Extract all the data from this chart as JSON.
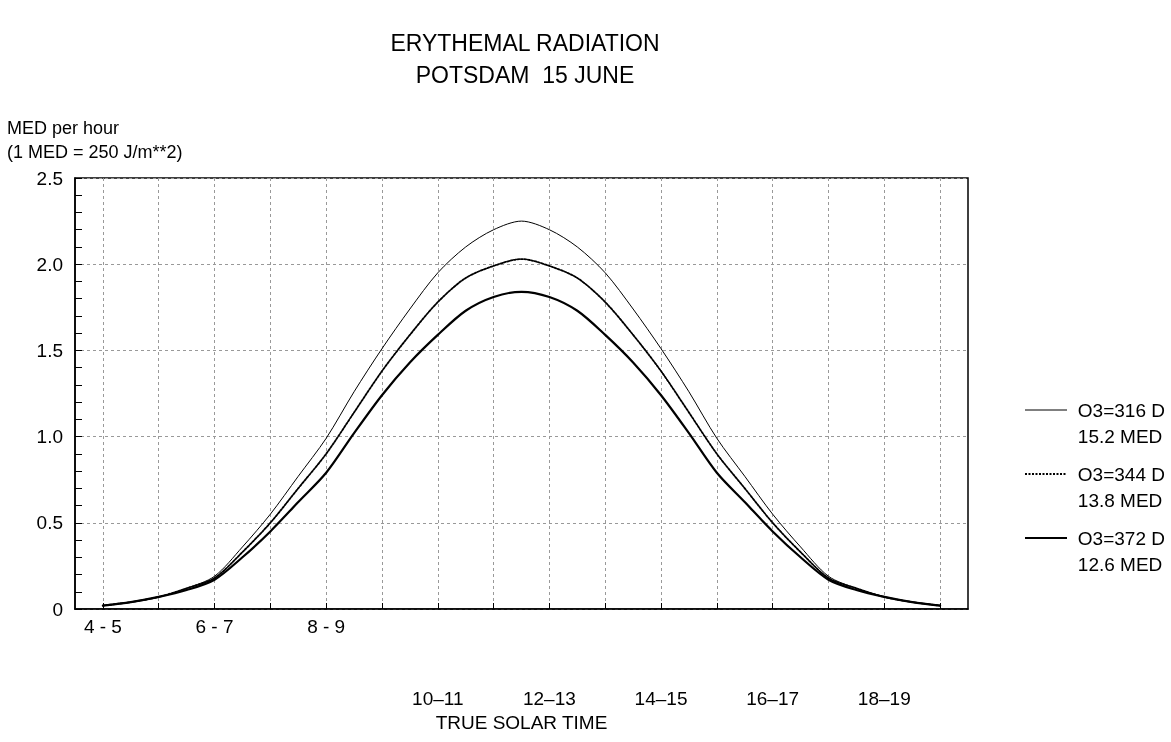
{
  "chart_data": {
    "type": "line",
    "title": "ERYTHEMAL RADIATION\nPOTSDAM  15 JUNE",
    "ylabel": "MED per hour\n(1 MED = 250 J/m**2)",
    "xlabel": "TRUE SOLAR TIME",
    "categories": [
      null,
      "4 - 5",
      null,
      null,
      null,
      "6 - 7",
      null,
      null,
      null,
      "8 - 9",
      null,
      null,
      null,
      "10–11",
      null,
      null,
      null,
      "12–13",
      null,
      null,
      null,
      "14–15",
      null,
      null,
      null,
      "16–17",
      null,
      null,
      null,
      "18–19",
      null,
      null,
      null
    ],
    "series": [
      {
        "name": "O3=316 D\n15.2 MED",
        "color": "#000000",
        "line_style": "solid",
        "values": [
          null,
          0.02,
          0.04,
          0.07,
          0.12,
          0.19,
          0.36,
          0.55,
          0.77,
          0.99,
          1.26,
          1.51,
          1.74,
          1.95,
          2.1,
          2.2,
          2.25,
          2.2,
          2.1,
          1.95,
          1.74,
          1.51,
          1.26,
          0.99,
          0.77,
          0.55,
          0.36,
          0.19,
          0.12,
          0.07,
          0.04,
          0.02,
          null
        ]
      },
      {
        "name": "O3=344 D\n13.8 MED",
        "color": "#000000",
        "line_style": "dotted",
        "values": [
          null,
          0.02,
          0.04,
          0.07,
          0.12,
          0.18,
          0.33,
          0.5,
          0.7,
          0.9,
          1.14,
          1.38,
          1.59,
          1.78,
          1.92,
          1.99,
          2.03,
          1.99,
          1.92,
          1.78,
          1.59,
          1.38,
          1.14,
          0.9,
          0.7,
          0.5,
          0.33,
          0.18,
          0.12,
          0.07,
          0.04,
          0.02,
          null
        ]
      },
      {
        "name": "O3=372 D\n12.6 MED",
        "color": "#000000",
        "line_style": "solid",
        "values": [
          null,
          0.02,
          0.04,
          0.07,
          0.11,
          0.17,
          0.3,
          0.45,
          0.62,
          0.79,
          1.02,
          1.24,
          1.43,
          1.59,
          1.73,
          1.81,
          1.84,
          1.81,
          1.73,
          1.59,
          1.43,
          1.24,
          1.02,
          0.79,
          0.62,
          0.45,
          0.3,
          0.17,
          0.11,
          0.07,
          0.04,
          0.02,
          null
        ]
      }
    ],
    "ylim": [
      0,
      2.5
    ],
    "yticks": [
      0,
      0.5,
      {
        "value": 1,
        "label": "1.0"
      },
      1.5,
      {
        "value": 2,
        "label": "2.0"
      },
      2.5
    ],
    "grid": true,
    "legend": "right",
    "marker": "none"
  }
}
